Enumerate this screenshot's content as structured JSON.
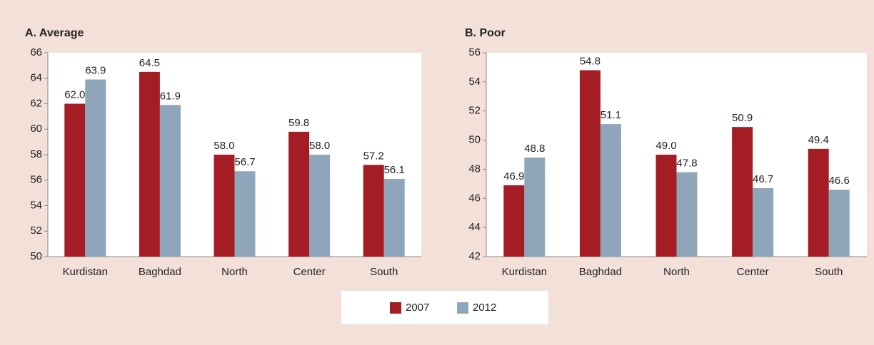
{
  "chart_data": [
    {
      "type": "bar",
      "title": "A. Average",
      "categories": [
        "Kurdistan",
        "Baghdad",
        "North",
        "Center",
        "South"
      ],
      "series": [
        {
          "name": "2007",
          "color": "#a51d24",
          "values": [
            62.0,
            64.5,
            58.0,
            59.8,
            57.2
          ],
          "value_labels": [
            "62.0",
            "64.5",
            "58.0",
            "59.8",
            "57.2"
          ]
        },
        {
          "name": "2012",
          "color": "#8fa6ba",
          "values": [
            63.9,
            61.9,
            56.7,
            58.0,
            56.1
          ],
          "value_labels": [
            "63.9",
            "61.9",
            "56.7",
            "58.0",
            "56.1"
          ]
        }
      ],
      "ylim": [
        50,
        66
      ],
      "yticks": [
        50,
        52,
        54,
        56,
        58,
        60,
        62,
        64,
        66
      ],
      "grid": false
    },
    {
      "type": "bar",
      "title": "B. Poor",
      "categories": [
        "Kurdistan",
        "Baghdad",
        "North",
        "Center",
        "South"
      ],
      "series": [
        {
          "color": "#a51d24",
          "values": [
            46.9,
            54.8,
            49.0,
            50.9,
            49.4
          ],
          "value_labels": [
            "46.9",
            "54.8",
            "49.0",
            "50.9",
            "49.4"
          ]
        },
        {
          "color": "#8fa6ba",
          "values": [
            48.8,
            51.1,
            47.8,
            46.7,
            46.6
          ],
          "value_labels": [
            "48.8",
            "51.1",
            "47.8",
            "46.7",
            "46.6"
          ]
        }
      ],
      "ylim": [
        42,
        56
      ],
      "yticks": [
        42,
        44,
        46,
        48,
        50,
        52,
        54,
        56
      ],
      "grid": false
    }
  ]
}
